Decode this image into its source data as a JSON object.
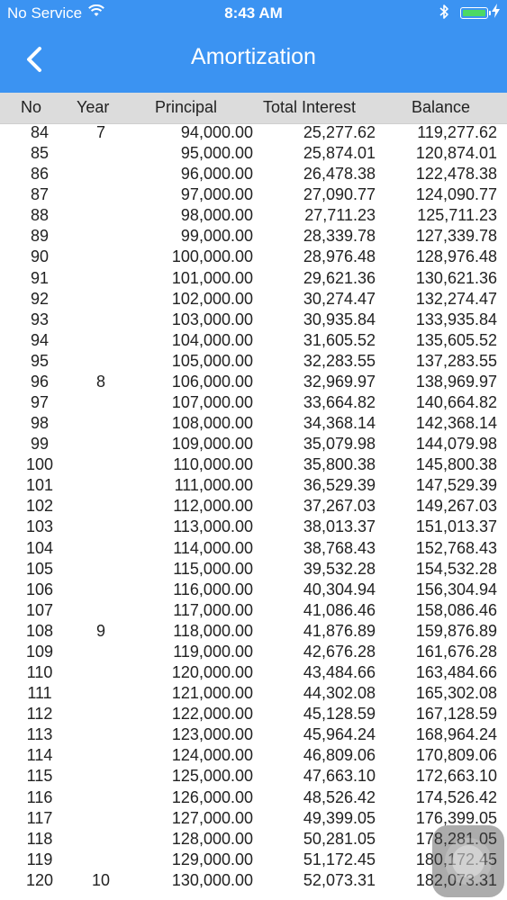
{
  "status_bar": {
    "carrier": "No Service",
    "time": "8:43 AM",
    "icons": {
      "wifi": "wifi-icon",
      "bluetooth": "bluetooth-icon",
      "battery": "battery-icon"
    },
    "battery_color": "#4cd964"
  },
  "nav": {
    "title": "Amortization",
    "back_icon": "chevron-left-icon",
    "bar_color": "#3b93f2"
  },
  "table": {
    "columns": [
      "No",
      "Year",
      "Principal",
      "Total Interest",
      "Balance"
    ],
    "rows": [
      {
        "no": "84",
        "year": "7",
        "principal": "94,000.00",
        "interest": "25,277.62",
        "balance": "119,277.62"
      },
      {
        "no": "85",
        "year": "",
        "principal": "95,000.00",
        "interest": "25,874.01",
        "balance": "120,874.01"
      },
      {
        "no": "86",
        "year": "",
        "principal": "96,000.00",
        "interest": "26,478.38",
        "balance": "122,478.38"
      },
      {
        "no": "87",
        "year": "",
        "principal": "97,000.00",
        "interest": "27,090.77",
        "balance": "124,090.77"
      },
      {
        "no": "88",
        "year": "",
        "principal": "98,000.00",
        "interest": "27,711.23",
        "balance": "125,711.23"
      },
      {
        "no": "89",
        "year": "",
        "principal": "99,000.00",
        "interest": "28,339.78",
        "balance": "127,339.78"
      },
      {
        "no": "90",
        "year": "",
        "principal": "100,000.00",
        "interest": "28,976.48",
        "balance": "128,976.48"
      },
      {
        "no": "91",
        "year": "",
        "principal": "101,000.00",
        "interest": "29,621.36",
        "balance": "130,621.36"
      },
      {
        "no": "92",
        "year": "",
        "principal": "102,000.00",
        "interest": "30,274.47",
        "balance": "132,274.47"
      },
      {
        "no": "93",
        "year": "",
        "principal": "103,000.00",
        "interest": "30,935.84",
        "balance": "133,935.84"
      },
      {
        "no": "94",
        "year": "",
        "principal": "104,000.00",
        "interest": "31,605.52",
        "balance": "135,605.52"
      },
      {
        "no": "95",
        "year": "",
        "principal": "105,000.00",
        "interest": "32,283.55",
        "balance": "137,283.55"
      },
      {
        "no": "96",
        "year": "8",
        "principal": "106,000.00",
        "interest": "32,969.97",
        "balance": "138,969.97"
      },
      {
        "no": "97",
        "year": "",
        "principal": "107,000.00",
        "interest": "33,664.82",
        "balance": "140,664.82"
      },
      {
        "no": "98",
        "year": "",
        "principal": "108,000.00",
        "interest": "34,368.14",
        "balance": "142,368.14"
      },
      {
        "no": "99",
        "year": "",
        "principal": "109,000.00",
        "interest": "35,079.98",
        "balance": "144,079.98"
      },
      {
        "no": "100",
        "year": "",
        "principal": "110,000.00",
        "interest": "35,800.38",
        "balance": "145,800.38"
      },
      {
        "no": "101",
        "year": "",
        "principal": "111,000.00",
        "interest": "36,529.39",
        "balance": "147,529.39"
      },
      {
        "no": "102",
        "year": "",
        "principal": "112,000.00",
        "interest": "37,267.03",
        "balance": "149,267.03"
      },
      {
        "no": "103",
        "year": "",
        "principal": "113,000.00",
        "interest": "38,013.37",
        "balance": "151,013.37"
      },
      {
        "no": "104",
        "year": "",
        "principal": "114,000.00",
        "interest": "38,768.43",
        "balance": "152,768.43"
      },
      {
        "no": "105",
        "year": "",
        "principal": "115,000.00",
        "interest": "39,532.28",
        "balance": "154,532.28"
      },
      {
        "no": "106",
        "year": "",
        "principal": "116,000.00",
        "interest": "40,304.94",
        "balance": "156,304.94"
      },
      {
        "no": "107",
        "year": "",
        "principal": "117,000.00",
        "interest": "41,086.46",
        "balance": "158,086.46"
      },
      {
        "no": "108",
        "year": "9",
        "principal": "118,000.00",
        "interest": "41,876.89",
        "balance": "159,876.89"
      },
      {
        "no": "109",
        "year": "",
        "principal": "119,000.00",
        "interest": "42,676.28",
        "balance": "161,676.28"
      },
      {
        "no": "110",
        "year": "",
        "principal": "120,000.00",
        "interest": "43,484.66",
        "balance": "163,484.66"
      },
      {
        "no": "111",
        "year": "",
        "principal": "121,000.00",
        "interest": "44,302.08",
        "balance": "165,302.08"
      },
      {
        "no": "112",
        "year": "",
        "principal": "122,000.00",
        "interest": "45,128.59",
        "balance": "167,128.59"
      },
      {
        "no": "113",
        "year": "",
        "principal": "123,000.00",
        "interest": "45,964.24",
        "balance": "168,964.24"
      },
      {
        "no": "114",
        "year": "",
        "principal": "124,000.00",
        "interest": "46,809.06",
        "balance": "170,809.06"
      },
      {
        "no": "115",
        "year": "",
        "principal": "125,000.00",
        "interest": "47,663.10",
        "balance": "172,663.10"
      },
      {
        "no": "116",
        "year": "",
        "principal": "126,000.00",
        "interest": "48,526.42",
        "balance": "174,526.42"
      },
      {
        "no": "117",
        "year": "",
        "principal": "127,000.00",
        "interest": "49,399.05",
        "balance": "176,399.05"
      },
      {
        "no": "118",
        "year": "",
        "principal": "128,000.00",
        "interest": "50,281.05",
        "balance": "178,281.05"
      },
      {
        "no": "119",
        "year": "",
        "principal": "129,000.00",
        "interest": "51,172.45",
        "balance": "180,172.45"
      },
      {
        "no": "120",
        "year": "10",
        "principal": "130,000.00",
        "interest": "52,073.31",
        "balance": "182,073.31"
      }
    ]
  },
  "assistive_touch": {
    "icon": "assistive-touch-icon"
  }
}
